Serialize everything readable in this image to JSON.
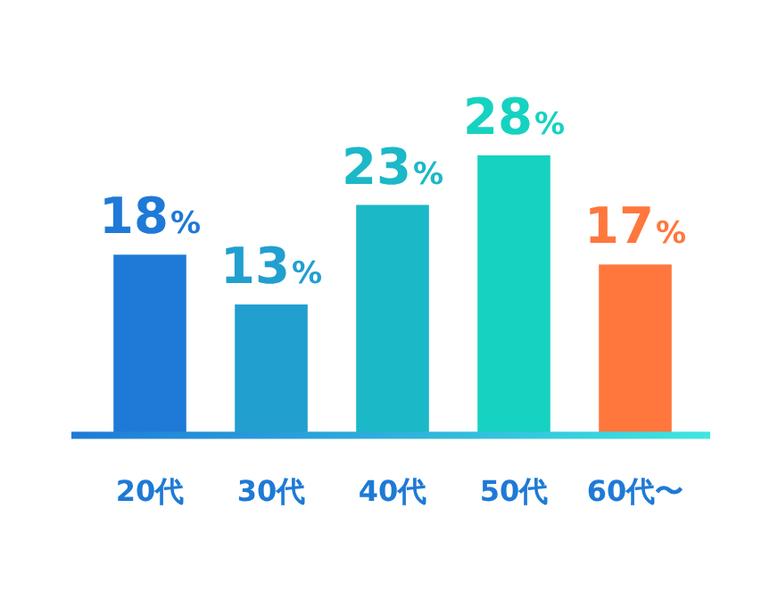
{
  "chart_data": {
    "type": "bar",
    "categories": [
      "20代",
      "30代",
      "40代",
      "50代",
      "60代〜"
    ],
    "values": [
      18,
      13,
      23,
      28,
      17
    ],
    "colors": [
      "#1e7ad6",
      "#219fcf",
      "#1bb8c8",
      "#16d2c0",
      "#ff773d"
    ],
    "value_labels": [
      "18%",
      "13%",
      "23%",
      "28%",
      "17%"
    ],
    "grid": false,
    "legend": false
  }
}
